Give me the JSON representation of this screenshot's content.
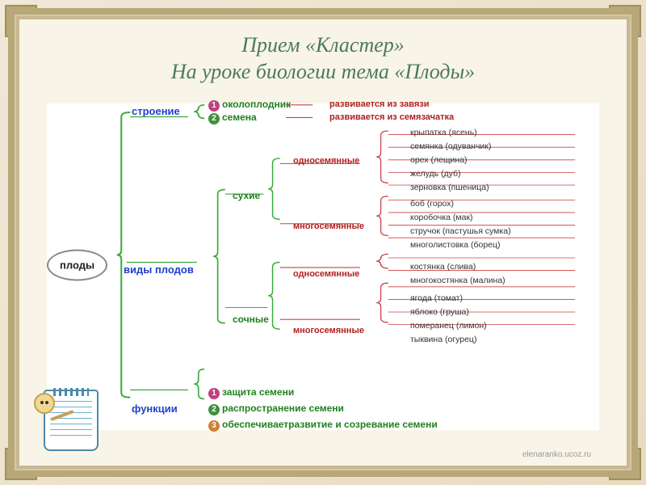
{
  "title_line1": "Прием «Кластер»",
  "title_line2": "На уроке биологии тема «Плоды»",
  "watermark": "elenaranko.ucoz.ru",
  "colors": {
    "title": "#4a7a5a",
    "root_border": "#888888",
    "lvl1": "#2040d0",
    "lvl2": "#208020",
    "lvl3": "#b02020",
    "leaf": "#333333",
    "bracket_green": "#3aaa3a",
    "bracket_red": "#cc4040",
    "background": "#ffffff",
    "badge1": "#c04080",
    "badge2": "#409040",
    "badge3": "#d08030"
  },
  "root": "плоды",
  "branches": [
    {
      "label": "строение",
      "children": [
        {
          "num": 1,
          "badge": "#c04080",
          "label": "околоплодник",
          "note": "развивается из завязи"
        },
        {
          "num": 2,
          "badge": "#409040",
          "label": "семена",
          "note": "развивается из семязачатка"
        }
      ]
    },
    {
      "label": "виды плодов",
      "children": [
        {
          "label": "сухие",
          "children": [
            {
              "label": "односемянные",
              "leaves": [
                "крыпатка (ясень)",
                "семянка (одуванчик)",
                "орех (лещина)",
                "желудь (дуб)",
                "зерновка (пшеница)"
              ]
            },
            {
              "label": "многосемянные",
              "leaves": [
                "боб (горох)",
                "коробочка (мак)",
                "стручок (пастушья сумка)",
                "многолистовка (борец)"
              ]
            }
          ]
        },
        {
          "label": "сочные",
          "children": [
            {
              "label": "односемянные",
              "leaves": [
                "костянка (слива)",
                "многокостянка (малина)"
              ]
            },
            {
              "label": "многосемянные",
              "leaves": [
                "ягода (томат)",
                "яблоко (груша)",
                "померанец (лимон)",
                "тыквина (огурец)"
              ]
            }
          ]
        }
      ]
    },
    {
      "label": "функции",
      "children": [
        {
          "num": 1,
          "badge": "#c04080",
          "label": "защита семени"
        },
        {
          "num": 2,
          "badge": "#409040",
          "label": "распространение семени"
        },
        {
          "num": 3,
          "badge": "#d08030",
          "label": "обеспечиваетразвитие и созревание семени"
        }
      ]
    }
  ]
}
